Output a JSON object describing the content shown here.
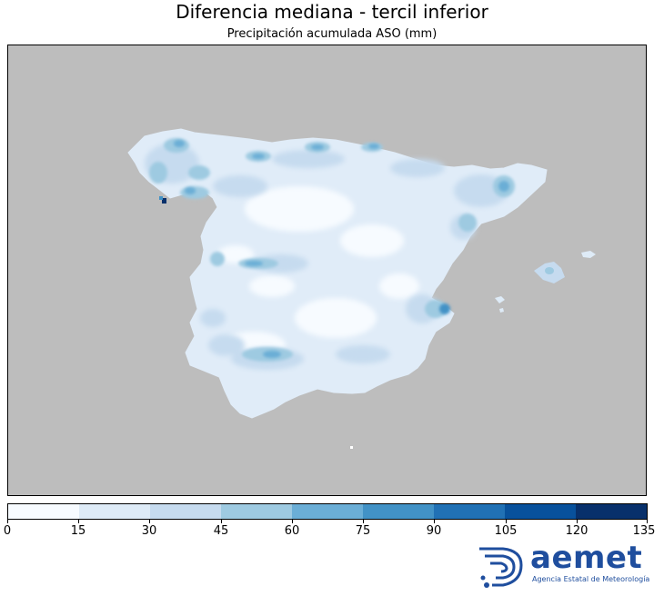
{
  "title": "Diferencia mediana - tercil inferior",
  "subtitle": "Precipitación acumulada ASO (mm)",
  "colorbar": {
    "ticks": [
      "0",
      "15",
      "30",
      "45",
      "60",
      "75",
      "90",
      "105",
      "120",
      "135"
    ],
    "colors": [
      "#f7fbff",
      "#deebf7",
      "#c6dbef",
      "#9ecae1",
      "#6baed6",
      "#4292c6",
      "#2171b5",
      "#08519c",
      "#08306b"
    ]
  },
  "logo": {
    "name": "aemet",
    "subtitle": "Agencia Estatal de Meteorología",
    "color": "#1f4e9e"
  },
  "map": {
    "background_color": "#bdbdbd"
  }
}
